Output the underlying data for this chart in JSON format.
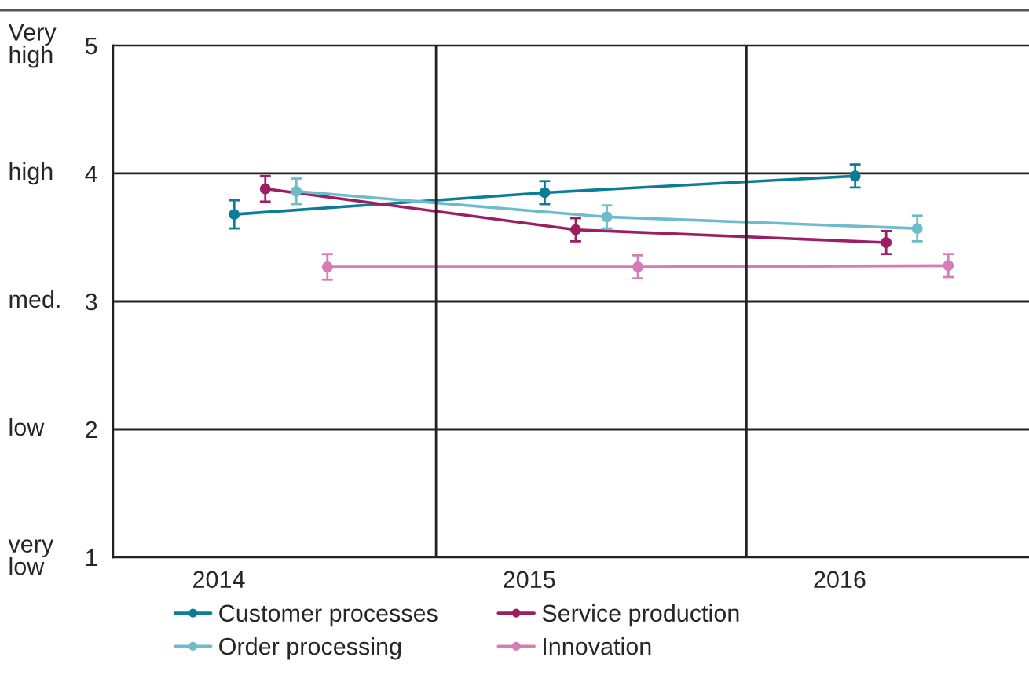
{
  "chart_data": {
    "type": "line",
    "categories": [
      "2014",
      "2015",
      "2016"
    ],
    "series": [
      {
        "name": "Customer processes",
        "color": "#0b7d96",
        "values": [
          3.68,
          3.85,
          3.98
        ],
        "errors": [
          0.11,
          0.09,
          0.09
        ]
      },
      {
        "name": "Service production",
        "color": "#9c1f63",
        "values": [
          3.88,
          3.56,
          3.46
        ],
        "errors": [
          0.1,
          0.09,
          0.09
        ]
      },
      {
        "name": "Order processing",
        "color": "#6dbccb",
        "values": [
          3.86,
          3.66,
          3.57
        ],
        "errors": [
          0.1,
          0.09,
          0.1
        ]
      },
      {
        "name": "Innovation",
        "color": "#d67cb7",
        "values": [
          3.27,
          3.27,
          3.28
        ],
        "errors": [
          0.1,
          0.09,
          0.09
        ]
      }
    ],
    "ylim": [
      1,
      5
    ],
    "yticks": [
      1,
      2,
      3,
      4,
      5
    ],
    "annotations": [
      "very\nlow",
      "low",
      "med.",
      "high",
      "Very\nhigh"
    ],
    "grid": "y",
    "legend": "bottom",
    "marker": "circle",
    "line_style": "solid"
  }
}
